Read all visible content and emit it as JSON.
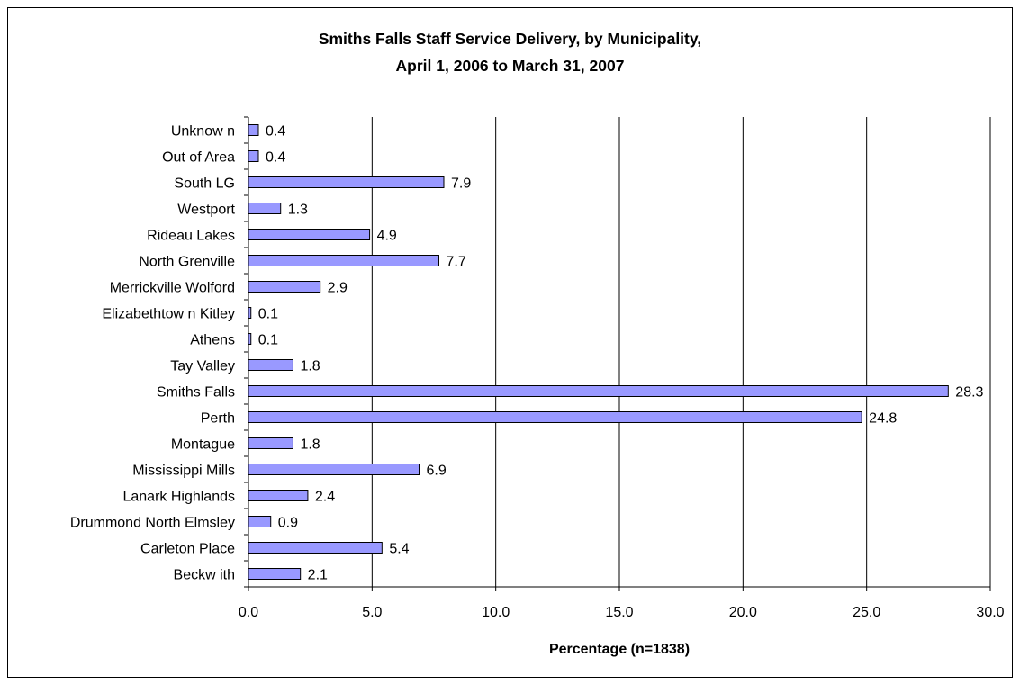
{
  "chart_data": {
    "type": "bar",
    "orientation": "horizontal",
    "title_line1": "Smiths Falls Staff Service Delivery, by Municipality,",
    "title_line2": "April 1, 2006 to March 31, 2007",
    "xlabel": "Percentage (n=1838)",
    "ylabel": "",
    "xlim": [
      0,
      30
    ],
    "xticks": [
      "0.0",
      "5.0",
      "10.0",
      "15.0",
      "20.0",
      "25.0",
      "30.0"
    ],
    "grid": "vertical",
    "bar_color": "#9999ff",
    "categories": [
      "Unknow n",
      "Out of Area",
      "South LG",
      "Westport",
      "Rideau Lakes",
      "North Grenville",
      "Merrickville Wolford",
      "Elizabethtow n Kitley",
      "Athens",
      "Tay Valley",
      "Smiths Falls",
      "Perth",
      "Montague",
      "Mississippi Mills",
      "Lanark Highlands",
      "Drummond North Elmsley",
      "Carleton Place",
      "Beckw ith"
    ],
    "values": [
      0.4,
      0.4,
      7.9,
      1.3,
      4.9,
      7.7,
      2.9,
      0.1,
      0.1,
      1.8,
      28.3,
      24.8,
      1.8,
      6.9,
      2.4,
      0.9,
      5.4,
      2.1
    ],
    "value_labels": [
      "0.4",
      "0.4",
      "7.9",
      "1.3",
      "4.9",
      "7.7",
      "2.9",
      "0.1",
      "0.1",
      "1.8",
      "28.3",
      "24.8",
      "1.8",
      "6.9",
      "2.4",
      "0.9",
      "5.4",
      "2.1"
    ]
  }
}
